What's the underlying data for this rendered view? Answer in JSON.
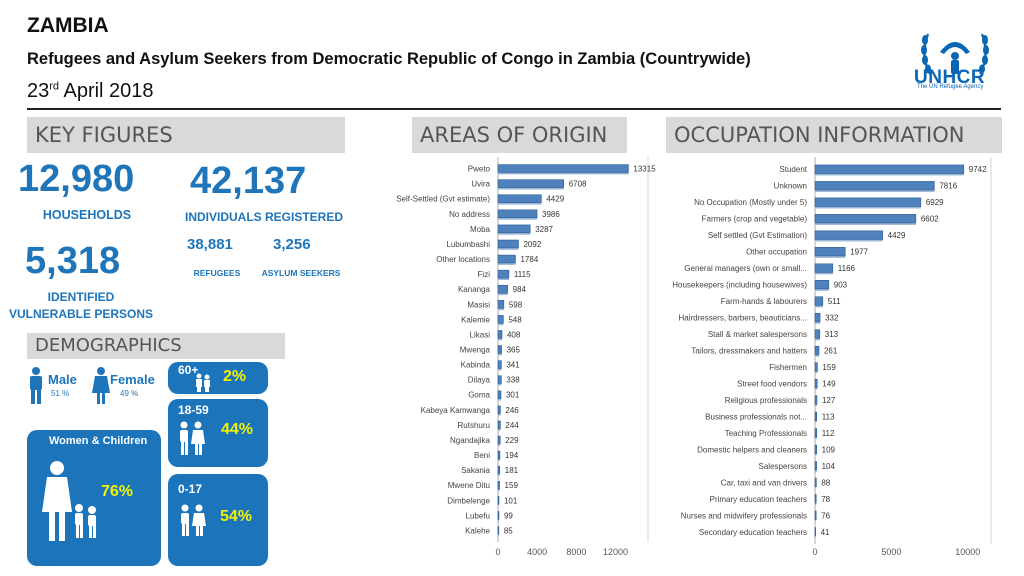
{
  "header": {
    "country": "ZAMBIA",
    "subtitle": "Refugees and Asylum Seekers from Democratic Republic of Congo in Zambia (Countrywide)",
    "date_day": "23",
    "date_suffix": "rd",
    "date_rest": " April 2018",
    "logo_text": "UNHCR",
    "logo_tagline": "The UN Refugee Agency"
  },
  "key_figures": {
    "heading": "KEY FIGURES",
    "households_value": "12,980",
    "households_label": "HOUSEHOLDS",
    "individuals_value": "42,137",
    "individuals_label": "INDIVIDUALS REGISTERED",
    "refugees_value": "38,881",
    "refugees_label": "REFUGEES",
    "asylum_value": "3,256",
    "asylum_label": "ASYLUM SEEKERS",
    "vulnerable_value": "5,318",
    "vulnerable_label_1": "IDENTIFIED",
    "vulnerable_label_2": "VULNERABLE PERSONS"
  },
  "demographics": {
    "heading": "DEMOGRAPHICS",
    "male_label": "Male",
    "male_pct": "51 %",
    "female_label": "Female",
    "female_pct": "49 %",
    "women_children_label": "Women & Children",
    "women_children_pct": "76%",
    "age_60_label": "60+",
    "age_60_pct": "2%",
    "age_18_label": "18-59",
    "age_18_pct": "44%",
    "age_0_label": "0-17",
    "age_0_pct": "54%"
  },
  "colors": {
    "accent": "#1f75b9",
    "bar": "#4f81bd",
    "highlight": "#f3f300",
    "section_bg": "#d9d9d9"
  },
  "chart_data": [
    {
      "type": "bar",
      "orientation": "horizontal",
      "title": "AREAS OF ORIGIN",
      "categories": [
        "Pweto",
        "Uvira",
        "Self-Settled (Gvt estimate)",
        "No address",
        "Moba",
        "Lubumbashi",
        "Other locations",
        "Fizi",
        "Kananga",
        "Masisi",
        "Kalemie",
        "Likasi",
        "Mwenga",
        "Kabinda",
        "Dilaya",
        "Goma",
        "Kabeya Kamwanga",
        "Rutshuru",
        "Ngandajika",
        "Beni",
        "Sakania",
        "Mwene Ditu",
        "Dimbelenge",
        "Lubefu",
        "Kalehe"
      ],
      "values": [
        13315,
        6708,
        4429,
        3986,
        3287,
        2092,
        1784,
        1115,
        984,
        598,
        548,
        408,
        365,
        341,
        338,
        301,
        246,
        244,
        229,
        194,
        181,
        159,
        101,
        99,
        85
      ],
      "xlim": [
        0,
        14500
      ],
      "ticks": [
        "0",
        "4000",
        "8000",
        "12000"
      ],
      "tick_values": [
        0,
        4000,
        8000,
        12000
      ]
    },
    {
      "type": "bar",
      "orientation": "horizontal",
      "title": "OCCUPATION INFORMATION",
      "categories": [
        "Student",
        "Unknown",
        "No Occupation (Mostly under 5)",
        "Farmers (crop and vegetable)",
        "Self settled (Gvt Estimation)",
        "Other occupation",
        "General managers (own or small...",
        "Housekeepers (including housewives)",
        "Farm-hands & labourers",
        "Hairdressers, barbers, beauticians...",
        "Stall & market salespersons",
        "Tailors, dressmakers and hatters",
        "Fishermen",
        "Street food vendors",
        "Religious professionals",
        "Business professionals not...",
        "Teaching Professionals",
        "Domestic helpers and cleaners",
        "Salespersons",
        "Car, taxi and van drivers",
        "Primary education teachers",
        "Nurses and midwifery professionals",
        "Secondary education teachers"
      ],
      "values": [
        9742,
        7816,
        6929,
        6602,
        4429,
        1977,
        1166,
        903,
        511,
        332,
        313,
        261,
        159,
        149,
        127,
        113,
        112,
        109,
        104,
        88,
        78,
        76,
        41
      ],
      "xlim": [
        0,
        11000
      ],
      "ticks": [
        "0",
        "5000",
        "10000"
      ],
      "tick_values": [
        0,
        5000,
        10000
      ]
    }
  ]
}
